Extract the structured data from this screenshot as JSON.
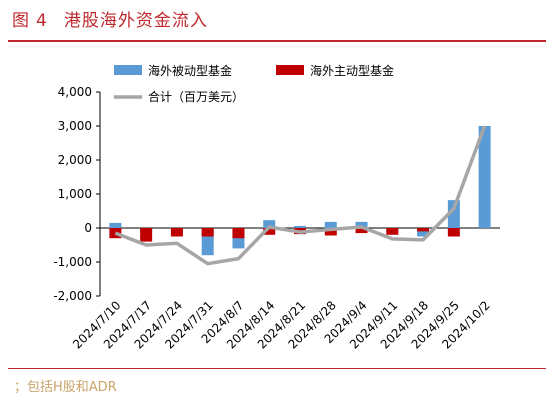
{
  "header": {
    "fig_label": "图",
    "fig_number": "4",
    "title": "港股海外资金流入"
  },
  "footer": {
    "note": "；包括H股和ADR"
  },
  "chart_data": {
    "type": "bar",
    "categories": [
      "2024/7/10",
      "2024/7/17",
      "2024/7/24",
      "2024/7/31",
      "2024/8/7",
      "2024/8/14",
      "2024/8/21",
      "2024/8/28",
      "2024/9/4",
      "2024/9/11",
      "2024/9/18",
      "2024/9/25",
      "2024/10/2"
    ],
    "series": [
      {
        "name": "海外被动型基金",
        "kind": "bar",
        "color": "#5b9bd5",
        "values": [
          150,
          -100,
          -200,
          -800,
          -600,
          230,
          60,
          180,
          180,
          -120,
          -250,
          820,
          3000
        ]
      },
      {
        "name": "海外主动型基金",
        "kind": "bar",
        "color": "#c00000",
        "values": [
          -300,
          -400,
          -250,
          -250,
          -300,
          -200,
          -180,
          -220,
          -150,
          -200,
          -100,
          -250,
          0
        ]
      },
      {
        "name": "合计（百万美元）",
        "kind": "line",
        "color": "#a6a6a6",
        "values": [
          -150,
          -500,
          -450,
          -1050,
          -900,
          30,
          -120,
          -40,
          30,
          -320,
          -350,
          570,
          3000
        ]
      }
    ],
    "yticks": [
      "4,000",
      "3,000",
      "2,000",
      "1,000",
      "0",
      "-1,000",
      "-2,000"
    ],
    "ylim": [
      -2000,
      4000
    ],
    "legend_position": "top"
  }
}
